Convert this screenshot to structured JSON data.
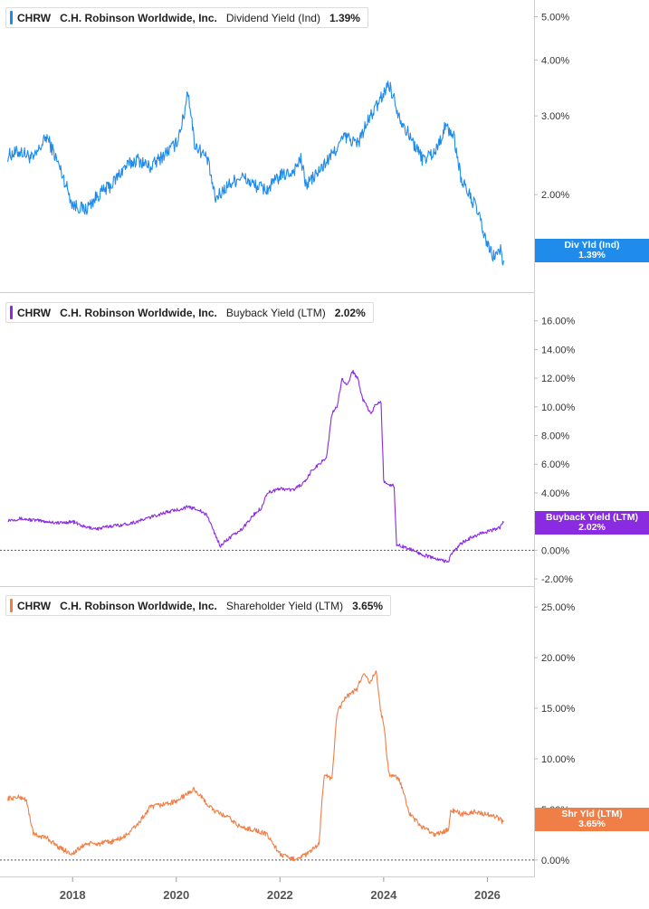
{
  "ticker": "CHRW",
  "company": "C.H. Robinson Worldwide, Inc.",
  "colors": {
    "dividend": "#1f8ceb",
    "buyback": "#8a2be2",
    "shareholder": "#ef7f47"
  },
  "chart_data": [
    {
      "type": "line",
      "scale": "log",
      "legend": {
        "metric": "Dividend Yield (Ind)",
        "value": "1.39%"
      },
      "tag": {
        "label": "Div Yld (Ind)",
        "value": "1.39%"
      },
      "yticks": [
        "5.00%",
        "4.00%",
        "3.00%",
        "2.00%"
      ],
      "ytick_values": [
        5,
        4,
        3,
        2
      ],
      "ylim": [
        1.25,
        5.25
      ],
      "series": [
        {
          "x": [
            2016.75,
            2017.0,
            2017.25,
            2017.5,
            2017.75,
            2018.0,
            2018.25,
            2018.5,
            2018.75,
            2019.0,
            2019.25,
            2019.5,
            2019.75,
            2020.0,
            2020.15,
            2020.22,
            2020.35,
            2020.6,
            2020.75,
            2021.0,
            2021.25,
            2021.5,
            2021.75,
            2022.0,
            2022.25,
            2022.4,
            2022.5,
            2022.75,
            2023.0,
            2023.25,
            2023.5,
            2023.75,
            2023.9,
            2024.1,
            2024.3,
            2024.5,
            2024.75,
            2025.0,
            2025.2,
            2025.35,
            2025.5,
            2025.65,
            2025.8,
            2025.95,
            2026.1,
            2026.25,
            2026.32
          ],
          "values": [
            2.45,
            2.5,
            2.4,
            2.7,
            2.3,
            1.9,
            1.85,
            2.0,
            2.1,
            2.3,
            2.4,
            2.3,
            2.45,
            2.6,
            3.0,
            3.45,
            2.6,
            2.4,
            1.95,
            2.1,
            2.2,
            2.1,
            2.05,
            2.2,
            2.25,
            2.4,
            2.1,
            2.25,
            2.45,
            2.7,
            2.6,
            3.0,
            3.2,
            3.55,
            3.0,
            2.7,
            2.4,
            2.5,
            2.85,
            2.7,
            2.15,
            2.0,
            1.85,
            1.6,
            1.45,
            1.5,
            1.39
          ]
        }
      ]
    },
    {
      "type": "line",
      "scale": "linear",
      "legend": {
        "metric": "Buyback Yield (LTM)",
        "value": "2.02%"
      },
      "tag": {
        "label": "Buyback Yield (LTM)",
        "value": "2.02%"
      },
      "yticks": [
        "16.00%",
        "14.00%",
        "12.00%",
        "10.00%",
        "8.00%",
        "6.00%",
        "4.00%",
        "2.00%",
        "0.00%",
        "-2.00%"
      ],
      "ytick_values": [
        16,
        14,
        12,
        10,
        8,
        6,
        4,
        2,
        0,
        -2
      ],
      "ylim": [
        -2.5,
        16.8
      ],
      "series": [
        {
          "x": [
            2016.75,
            2017.0,
            2017.5,
            2017.75,
            2018.0,
            2018.25,
            2018.5,
            2018.75,
            2019.0,
            2019.25,
            2019.5,
            2019.75,
            2020.0,
            2020.2,
            2020.4,
            2020.6,
            2020.75,
            2020.85,
            2021.0,
            2021.25,
            2021.5,
            2021.65,
            2021.75,
            2022.0,
            2022.25,
            2022.5,
            2022.6,
            2022.75,
            2022.9,
            2023.0,
            2023.1,
            2023.2,
            2023.3,
            2023.4,
            2023.5,
            2023.6,
            2023.75,
            2023.85,
            2023.95,
            2024.0,
            2024.1,
            2024.2,
            2024.25,
            2024.5,
            2024.75,
            2025.0,
            2025.25,
            2025.3,
            2025.5,
            2025.75,
            2026.0,
            2026.25,
            2026.32
          ],
          "values": [
            2.1,
            2.2,
            2.0,
            1.9,
            2.0,
            1.6,
            1.5,
            1.7,
            1.8,
            2.0,
            2.3,
            2.6,
            2.8,
            3.0,
            2.9,
            2.4,
            1.1,
            0.3,
            0.8,
            1.4,
            2.5,
            3.0,
            4.0,
            4.3,
            4.2,
            4.8,
            5.5,
            6.0,
            6.5,
            9.5,
            10.0,
            12.0,
            11.5,
            12.5,
            12.0,
            10.5,
            9.5,
            10.2,
            10.3,
            4.8,
            4.6,
            4.5,
            0.4,
            0.1,
            -0.3,
            -0.6,
            -0.8,
            -0.3,
            0.5,
            1.0,
            1.3,
            1.6,
            2.02
          ]
        }
      ]
    },
    {
      "type": "line",
      "scale": "linear",
      "legend": {
        "metric": "Shareholder Yield (LTM)",
        "value": "3.65%"
      },
      "tag": {
        "label": "Shr Yld (LTM)",
        "value": "3.65%"
      },
      "yticks": [
        "25.00%",
        "20.00%",
        "15.00%",
        "10.00%",
        "5.00%",
        "0.00%"
      ],
      "ytick_values": [
        25,
        20,
        15,
        10,
        5,
        0
      ],
      "ylim": [
        -1.0,
        26.0
      ],
      "series": [
        {
          "x": [
            2016.75,
            2017.0,
            2017.1,
            2017.25,
            2017.5,
            2017.75,
            2018.0,
            2018.25,
            2018.5,
            2018.75,
            2019.0,
            2019.25,
            2019.5,
            2019.75,
            2020.0,
            2020.2,
            2020.35,
            2020.6,
            2020.75,
            2021.0,
            2021.25,
            2021.5,
            2021.75,
            2022.0,
            2022.15,
            2022.25,
            2022.5,
            2022.75,
            2022.85,
            2023.0,
            2023.1,
            2023.25,
            2023.5,
            2023.6,
            2023.75,
            2023.85,
            2023.95,
            2024.0,
            2024.1,
            2024.3,
            2024.5,
            2024.75,
            2025.0,
            2025.25,
            2025.3,
            2025.5,
            2025.75,
            2026.0,
            2026.2,
            2026.32
          ],
          "values": [
            6.1,
            6.2,
            6.0,
            2.5,
            2.2,
            1.2,
            0.6,
            1.6,
            1.6,
            1.8,
            2.3,
            3.5,
            5.2,
            5.5,
            5.8,
            6.5,
            7.0,
            5.5,
            4.8,
            4.2,
            3.2,
            3.0,
            2.5,
            0.6,
            0.2,
            0.1,
            0.5,
            1.5,
            8.5,
            8.0,
            14.5,
            16.0,
            17.0,
            18.5,
            17.5,
            18.8,
            14.5,
            13.5,
            8.5,
            8.0,
            4.5,
            3.2,
            2.5,
            3.0,
            5.0,
            4.5,
            4.8,
            4.5,
            4.2,
            3.65
          ]
        }
      ]
    }
  ],
  "xticks": [
    "2018",
    "2020",
    "2022",
    "2024",
    "2026"
  ],
  "xtick_values": [
    2018,
    2020,
    2022,
    2024,
    2026
  ],
  "xlim": [
    2016.6,
    2026.9
  ]
}
